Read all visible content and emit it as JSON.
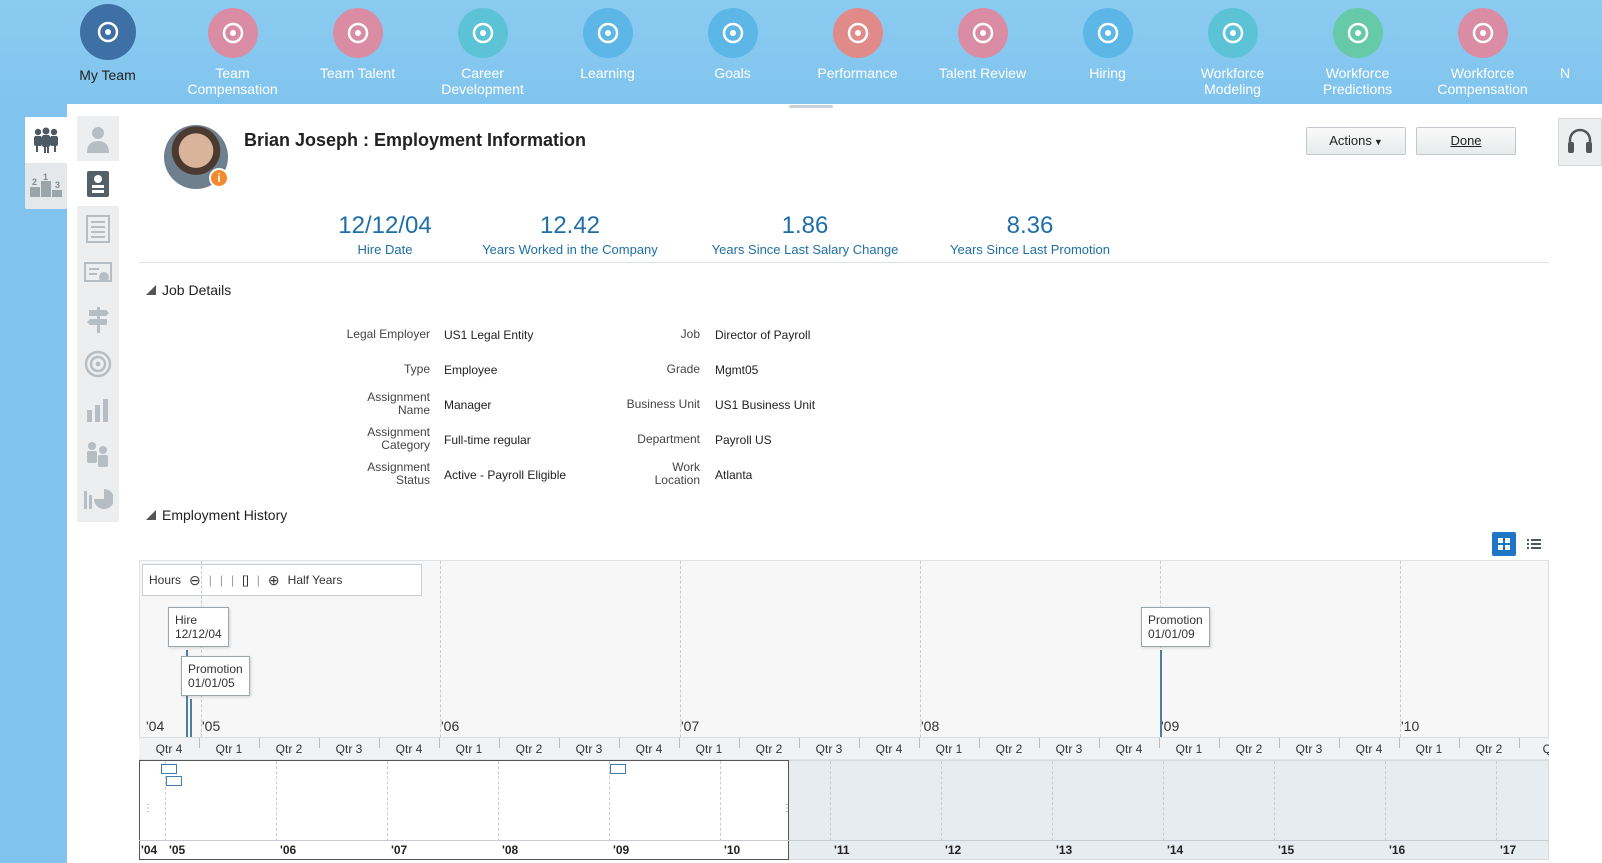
{
  "nav": {
    "items": [
      {
        "label": "My Team",
        "icon": "team-icon",
        "color": "#3e6fa5",
        "active": true
      },
      {
        "label": "Team\nCompensation",
        "icon": "compensation-icon",
        "color": "#d98ca4"
      },
      {
        "label": "Team Talent",
        "icon": "talent-icon",
        "color": "#d98ca4"
      },
      {
        "label": "Career\nDevelopment",
        "icon": "signpost-icon",
        "color": "#5cc3d6"
      },
      {
        "label": "Learning",
        "icon": "play-icon",
        "color": "#5cb6e6"
      },
      {
        "label": "Goals",
        "icon": "target-icon",
        "color": "#5cb6e6"
      },
      {
        "label": "Performance",
        "icon": "bar-chart-icon",
        "color": "#e08a8a"
      },
      {
        "label": "Talent Review",
        "icon": "grid-icon",
        "color": "#d98ca4"
      },
      {
        "label": "Hiring",
        "icon": "people-search-icon",
        "color": "#5cb6e6"
      },
      {
        "label": "Workforce\nModeling",
        "icon": "modeling-icon",
        "color": "#5cc3d6"
      },
      {
        "label": "Workforce\nPredictions",
        "icon": "crystal-ball-icon",
        "color": "#66c9a8"
      },
      {
        "label": "Workforce\nCompensation",
        "icon": "compensation-icon",
        "color": "#d98ca4"
      },
      {
        "label": "N",
        "icon": "",
        "color": ""
      }
    ]
  },
  "header": {
    "title": "Brian Joseph : Employment Information",
    "actions_label": "Actions",
    "done_label": "Done"
  },
  "metrics": [
    {
      "value": "12/12/04",
      "label": "Hire Date"
    },
    {
      "value": "12.42",
      "label": "Years Worked in the Company"
    },
    {
      "value": "1.86",
      "label": "Years Since Last Salary Change"
    },
    {
      "value": "8.36",
      "label": "Years Since Last Promotion"
    }
  ],
  "job_details": {
    "heading": "Job Details",
    "left": [
      {
        "label": "Legal Employer",
        "value": "US1 Legal Entity"
      },
      {
        "label": "Type",
        "value": "Employee"
      },
      {
        "label": "Assignment\nName",
        "value": "Manager"
      },
      {
        "label": "Assignment\nCategory",
        "value": "Full-time regular"
      },
      {
        "label": "Assignment\nStatus",
        "value": "Active - Payroll Eligible"
      }
    ],
    "right": [
      {
        "label": "Job",
        "value": "Director of Payroll"
      },
      {
        "label": "Grade",
        "value": "Mgmt05"
      },
      {
        "label": "Business Unit",
        "value": "US1 Business Unit"
      },
      {
        "label": "Department",
        "value": "Payroll US"
      },
      {
        "label": "Work\nLocation",
        "value": "Atlanta"
      }
    ]
  },
  "employment_history": {
    "heading": "Employment History",
    "zoom": {
      "min_label": "Hours",
      "max_label": "Half Years"
    },
    "events": [
      {
        "title": "Hire",
        "date": "12/12/04"
      },
      {
        "title": "Promotion",
        "date": "01/01/05"
      },
      {
        "title": "Promotion",
        "date": "01/01/09"
      }
    ],
    "years": [
      "'04",
      "'05",
      "'06",
      "'07",
      "'08",
      "'09",
      "'10"
    ],
    "quarters": [
      "Qtr 4",
      "Qtr 1",
      "Qtr 2",
      "Qtr 3",
      "Qtr 4",
      "Qtr 1",
      "Qtr 2",
      "Qtr 3",
      "Qtr 4",
      "Qtr 1",
      "Qtr 2",
      "Qtr 3",
      "Qtr 4",
      "Qtr 1",
      "Qtr 2",
      "Qtr 3",
      "Qtr 4",
      "Qtr 1",
      "Qtr 2",
      "Qtr 3",
      "Qtr 4",
      "Qtr 1",
      "Qtr 2",
      "Qt"
    ],
    "overview_years": [
      "'04",
      "'05",
      "'06",
      "'07",
      "'08",
      "'09",
      "'10",
      "'11",
      "'12",
      "'13",
      "'14",
      "'15",
      "'16",
      "'17"
    ]
  }
}
